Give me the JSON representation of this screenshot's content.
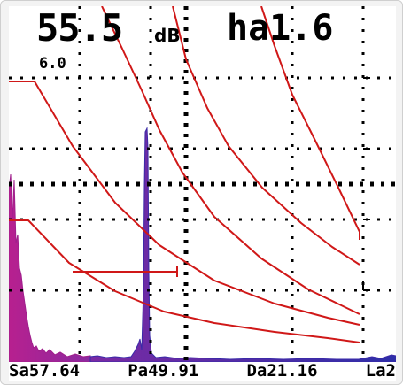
{
  "readout": {
    "gain_value": "55.5",
    "gain_unit": "dB",
    "amplitude": "ha1.6",
    "reference_level": "6.0"
  },
  "status": {
    "sa": "Sa57.64",
    "pa": "Pa49.91",
    "da": "Da21.16",
    "la": "La2"
  },
  "colors": {
    "background": "#ffffff",
    "grid": "#000000",
    "dac_curves": "#d01818",
    "signal_near": "#b0208c",
    "signal_peak": "#2d2aa8",
    "gate": "#d01818"
  }
}
